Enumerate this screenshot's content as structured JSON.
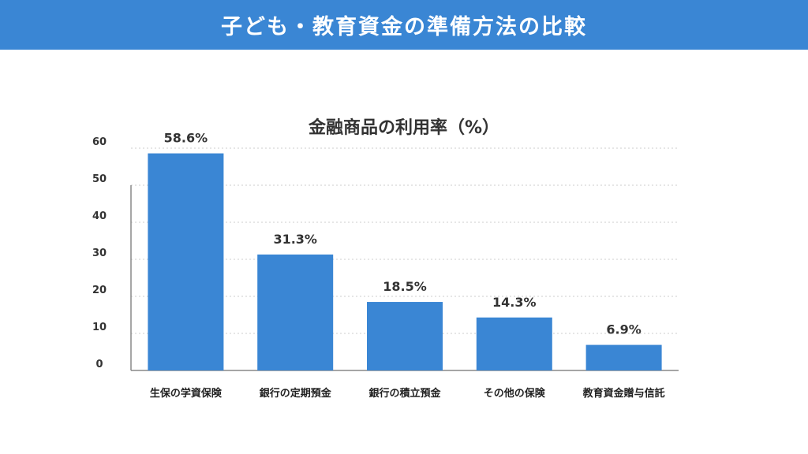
{
  "header": {
    "title": "子ども・教育資金の準備方法の比較"
  },
  "chart_data": {
    "type": "bar",
    "title": "金融商品の利用率（%）",
    "categories": [
      "生保の学資保険",
      "銀行の定期預金",
      "銀行の積立預金",
      "その他の保険",
      "教育資金贈与信託"
    ],
    "values": [
      58.6,
      31.3,
      18.5,
      14.3,
      6.9
    ],
    "value_labels": [
      "58.6%",
      "31.3%",
      "18.5%",
      "14.3%",
      "6.9%"
    ],
    "yticks": [
      0,
      10,
      20,
      30,
      40,
      50,
      60
    ],
    "ylim": [
      0,
      60
    ],
    "grid": true,
    "bar_color": "#3a86d4"
  }
}
